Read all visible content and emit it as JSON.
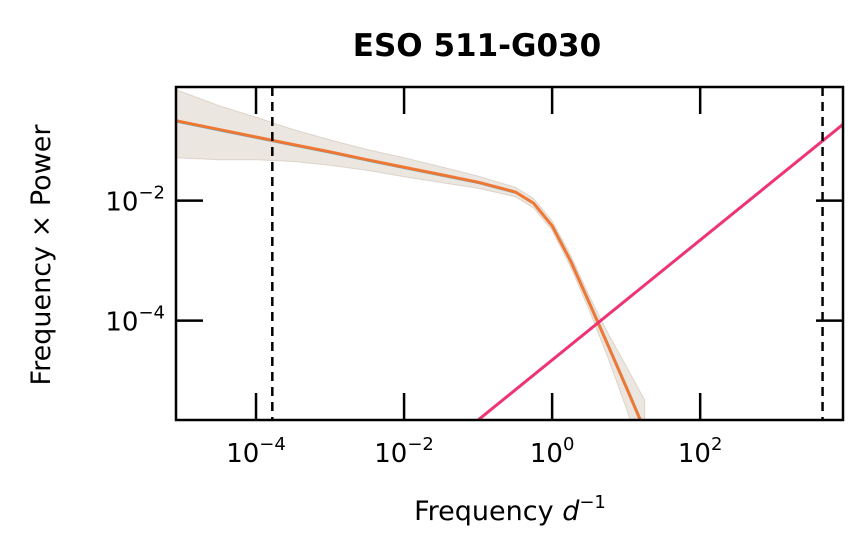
{
  "chart_data": {
    "type": "line",
    "title": "ESO 511-G030",
    "xlabel": "Frequency",
    "xlabel_unit": "d",
    "xlabel_unit_exp": "−1",
    "ylabel": "Frequency × Power",
    "xscale": "log",
    "yscale": "log",
    "xlim": [
      8.3e-06,
      8500.0
    ],
    "ylim": [
      2.2e-06,
      0.785
    ],
    "grid": false,
    "x_ticks": [
      {
        "value": 0.0001,
        "base": "10",
        "exp": "−4"
      },
      {
        "value": 0.01,
        "base": "10",
        "exp": "−2"
      },
      {
        "value": 1,
        "base": "10",
        "exp": "0"
      },
      {
        "value": 100,
        "base": "10",
        "exp": "2"
      }
    ],
    "y_ticks": [
      {
        "value": 0.01,
        "base": "10",
        "exp": "−2"
      },
      {
        "value": 0.0001,
        "base": "10",
        "exp": "−4"
      }
    ],
    "vertical_lines": [
      0.000166,
      4500.0
    ],
    "colors": {
      "model": "#ee7733",
      "model_alt": "#33bbee",
      "band": "#c8b8a8",
      "noise": "#ee3377",
      "vline": "#000000"
    },
    "model": {
      "x": [
        8.3e-06,
        3.2e-05,
        0.0001,
        0.00032,
        0.001,
        0.0032,
        0.01,
        0.032,
        0.1,
        0.32,
        0.56,
        1,
        1.78,
        3.16,
        5.62,
        10,
        17.8
      ],
      "y": [
        0.215,
        0.153,
        0.115,
        0.086,
        0.065,
        0.048,
        0.036,
        0.027,
        0.0203,
        0.0139,
        0.0091,
        0.0038,
        0.00098,
        0.0002,
        4e-05,
        7.8e-06,
        1.48e-06
      ],
      "upper": [
        0.71,
        0.38,
        0.246,
        0.153,
        0.103,
        0.071,
        0.052,
        0.0365,
        0.0256,
        0.0167,
        0.0109,
        0.0046,
        0.00123,
        0.00026,
        6.3e-05,
        1.75e-05,
        4.7e-06
      ],
      "lower": [
        0.052,
        0.048,
        0.048,
        0.045,
        0.039,
        0.032,
        0.025,
        0.02,
        0.0161,
        0.0116,
        0.0076,
        0.0032,
        0.00078,
        0.00015,
        2.5e-05,
        3.5e-06,
        4.7e-07
      ]
    },
    "noise": {
      "x": [
        0.1,
        10000.0
      ],
      "y": [
        2.2e-06,
        0.22
      ]
    }
  }
}
